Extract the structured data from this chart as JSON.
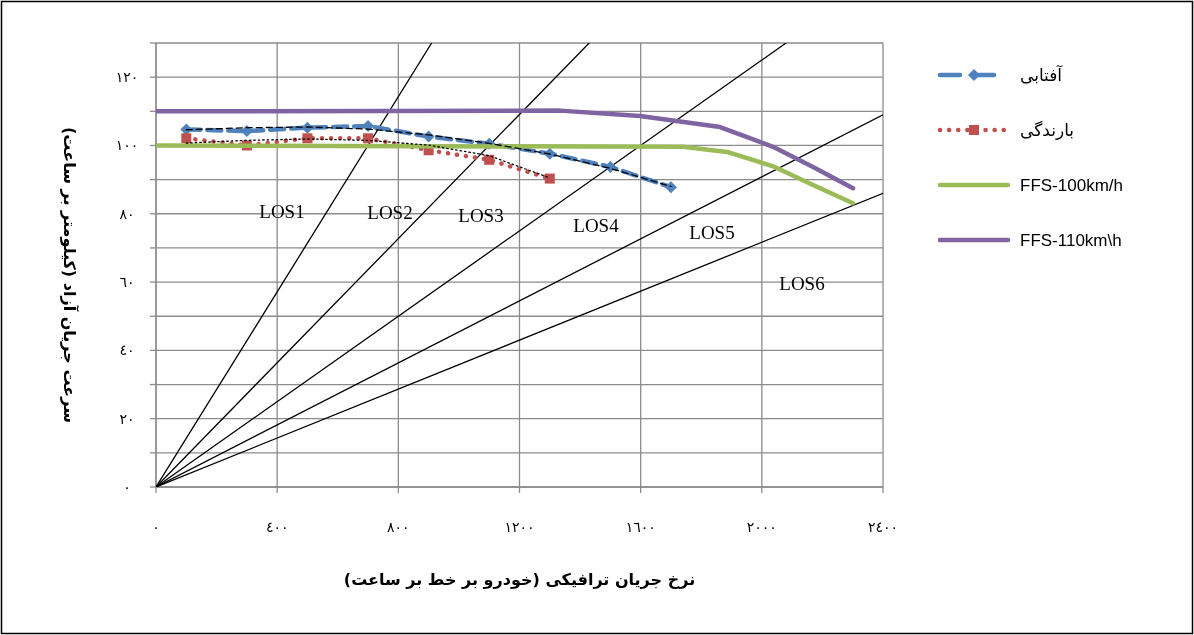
{
  "chart_data": {
    "type": "line",
    "xlabel": "نرخ جریان ترافیکی (خودرو بر خط بر ساعت)",
    "ylabel": "سرعت جریان آزاد (کیلومتر بر ساعت)",
    "xlim": [
      0,
      2400
    ],
    "ylim": [
      0,
      130
    ],
    "xticks": [
      {
        "value": 0,
        "label": "٠"
      },
      {
        "value": 400,
        "label": "٤٠٠"
      },
      {
        "value": 800,
        "label": "٨٠٠"
      },
      {
        "value": 1200,
        "label": "١٢٠٠"
      },
      {
        "value": 1600,
        "label": "١٦٠٠"
      },
      {
        "value": 2000,
        "label": "٢٠٠٠"
      },
      {
        "value": 2400,
        "label": "٢٤٠٠"
      }
    ],
    "yticks": [
      {
        "value": 0,
        "label": "٠"
      },
      {
        "value": 10,
        "label": null
      },
      {
        "value": 20,
        "label": "٢٠"
      },
      {
        "value": 30,
        "label": null
      },
      {
        "value": 40,
        "label": "٤٠"
      },
      {
        "value": 50,
        "label": null
      },
      {
        "value": 60,
        "label": "٦٠"
      },
      {
        "value": 70,
        "label": null
      },
      {
        "value": 80,
        "label": "٨٠"
      },
      {
        "value": 90,
        "label": null
      },
      {
        "value": 100,
        "label": "١٠٠"
      },
      {
        "value": 110,
        "label": null
      },
      {
        "value": 120,
        "label": "١٢٠"
      },
      {
        "value": 130,
        "label": null
      }
    ],
    "grid": true,
    "legend": "right",
    "series": [
      {
        "color": "#000000",
        "x": [
          0,
          910
        ],
        "values": [
          0,
          130
        ],
        "marker": "none",
        "line_style": "solid"
      },
      {
        "color": "#000000",
        "x": [
          0,
          1430
        ],
        "values": [
          0,
          130
        ],
        "marker": "none",
        "line_style": "solid"
      },
      {
        "color": "#000000",
        "x": [
          0,
          2080
        ],
        "values": [
          0,
          130
        ],
        "marker": "none",
        "line_style": "solid"
      },
      {
        "color": "#000000",
        "x": [
          0,
          2400
        ],
        "values": [
          0,
          109
        ],
        "marker": "none",
        "line_style": "solid"
      },
      {
        "color": "#000000",
        "x": [
          0,
          2400
        ],
        "values": [
          0,
          86
        ],
        "marker": "none",
        "line_style": "solid"
      },
      {
        "name": "آفتابی",
        "color": "#4f81bd",
        "x": [
          100,
          300,
          500,
          700,
          900,
          1100,
          1300,
          1500,
          1700
        ],
        "values": [
          104.7,
          104.2,
          105.2,
          105.7,
          102.6,
          100.5,
          97.6,
          93.7,
          87.8
        ],
        "marker": "diamond",
        "line_style": "dashed"
      },
      {
        "name": "بارندگی",
        "color": "#c0504d",
        "x": [
          100,
          300,
          500,
          700,
          900,
          1100,
          1300
        ],
        "values": [
          102.1,
          100,
          102.1,
          102.1,
          98.6,
          95.8,
          90.3
        ],
        "marker": "square",
        "line_style": "dotted"
      },
      {
        "name": "FFS-100km/h",
        "color": "#9bbb59",
        "x": [
          0,
          1740,
          1885,
          2037,
          2169,
          2301
        ],
        "values": [
          100,
          99.6,
          98.1,
          93.9,
          88.4,
          83.1
        ],
        "marker": "none",
        "line_style": "solid"
      },
      {
        "name": "FFS-110km\\h",
        "color": "#8064a2",
        "x": [
          0,
          1334,
          1598,
          1862,
          2037,
          2169,
          2301
        ],
        "values": [
          110,
          110.2,
          108.6,
          105.4,
          99.6,
          93.7,
          87.5
        ],
        "marker": "none",
        "line_style": "solid"
      },
      {
        "color": "#000000",
        "x": [
          100,
          300,
          500,
          700,
          900,
          1100,
          1300,
          1500,
          1700
        ],
        "values": [
          104.6,
          105.2,
          105.4,
          104.8,
          103.1,
          100.6,
          97.5,
          93.3,
          88
        ],
        "marker": "none",
        "line_style": "dashed"
      },
      {
        "color": "#000000",
        "x": [
          100,
          300,
          500,
          700,
          900,
          1100,
          1300
        ],
        "values": [
          100.7,
          101.5,
          101.9,
          101.5,
          100.1,
          97,
          90.5
        ],
        "marker": "none",
        "line_style": "dotted"
      }
    ],
    "annotations": [
      "LOS1",
      "LOS2",
      "LOS3",
      "LOS4",
      "LOS5",
      "LOS6"
    ]
  }
}
